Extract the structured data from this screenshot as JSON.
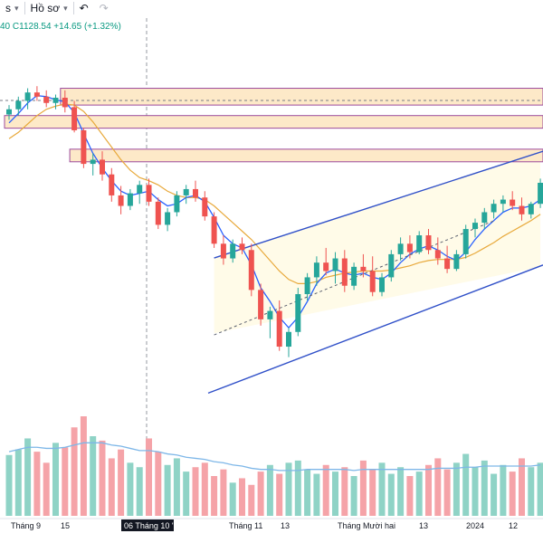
{
  "toolbar": {
    "partial_label": "s",
    "profile_label": "Hồ sơ",
    "undo_icon": "undo-icon",
    "redo_icon": "redo-icon",
    "menu_icon": "chevron-down-icon"
  },
  "ohlc_text": "40  C1128.54  +14.65 (+1.32%)",
  "colors": {
    "up": "#26a69a",
    "down": "#ef5350",
    "vol_up": "#8fd3c6",
    "vol_down": "#f5a3a8",
    "ma_fast": "#2962ff",
    "ma_slow": "#e8a93b",
    "ma_vol": "#7eb7e8",
    "zone_fill": "#fde9c8",
    "zone_border": "#9c4a9c",
    "channel": "#3050c8",
    "channel_fill": "#fffbe8"
  },
  "chart_data": {
    "type": "candlestick",
    "x_labels": [
      "Tháng 9",
      "15",
      "06 Tháng 10 '23",
      "Tháng 11",
      "13",
      "Tháng Mười hai",
      "13",
      "2024",
      "12"
    ],
    "crosshair_label": "06 Tháng 10 '23",
    "price_scale": [
      930,
      1260
    ],
    "candles": [
      [
        1213,
        1222,
        1208,
        1218
      ],
      [
        1218,
        1230,
        1212,
        1226
      ],
      [
        1226,
        1238,
        1218,
        1234
      ],
      [
        1234,
        1240,
        1226,
        1230
      ],
      [
        1230,
        1236,
        1220,
        1224
      ],
      [
        1224,
        1232,
        1218,
        1229
      ],
      [
        1229,
        1236,
        1215,
        1220
      ],
      [
        1220,
        1226,
        1196,
        1198
      ],
      [
        1198,
        1200,
        1162,
        1166
      ],
      [
        1166,
        1176,
        1155,
        1170
      ],
      [
        1170,
        1178,
        1150,
        1156
      ],
      [
        1156,
        1162,
        1130,
        1136
      ],
      [
        1136,
        1145,
        1118,
        1126
      ],
      [
        1126,
        1142,
        1122,
        1138
      ],
      [
        1138,
        1150,
        1128,
        1146
      ],
      [
        1146,
        1152,
        1126,
        1130
      ],
      [
        1130,
        1134,
        1104,
        1108
      ],
      [
        1108,
        1124,
        1102,
        1120
      ],
      [
        1120,
        1140,
        1116,
        1136
      ],
      [
        1136,
        1146,
        1128,
        1142
      ],
      [
        1142,
        1150,
        1130,
        1134
      ],
      [
        1134,
        1140,
        1112,
        1116
      ],
      [
        1116,
        1120,
        1086,
        1090
      ],
      [
        1090,
        1098,
        1070,
        1076
      ],
      [
        1076,
        1094,
        1072,
        1090
      ],
      [
        1090,
        1096,
        1080,
        1084
      ],
      [
        1084,
        1090,
        1040,
        1046
      ],
      [
        1046,
        1052,
        1012,
        1018
      ],
      [
        1018,
        1030,
        1000,
        1026
      ],
      [
        1026,
        1036,
        988,
        992
      ],
      [
        992,
        1010,
        982,
        1006
      ],
      [
        1006,
        1048,
        1002,
        1042
      ],
      [
        1042,
        1062,
        1036,
        1058
      ],
      [
        1058,
        1078,
        1050,
        1072
      ],
      [
        1072,
        1086,
        1060,
        1064
      ],
      [
        1064,
        1082,
        1052,
        1076
      ],
      [
        1076,
        1084,
        1044,
        1050
      ],
      [
        1050,
        1072,
        1046,
        1068
      ],
      [
        1068,
        1080,
        1058,
        1064
      ],
      [
        1064,
        1078,
        1040,
        1044
      ],
      [
        1044,
        1062,
        1040,
        1058
      ],
      [
        1058,
        1084,
        1054,
        1080
      ],
      [
        1080,
        1096,
        1074,
        1090
      ],
      [
        1090,
        1098,
        1076,
        1082
      ],
      [
        1082,
        1102,
        1080,
        1098
      ],
      [
        1098,
        1104,
        1080,
        1084
      ],
      [
        1084,
        1096,
        1070,
        1076
      ],
      [
        1076,
        1088,
        1062,
        1066
      ],
      [
        1066,
        1084,
        1064,
        1080
      ],
      [
        1080,
        1108,
        1076,
        1104
      ],
      [
        1104,
        1114,
        1096,
        1110
      ],
      [
        1110,
        1124,
        1104,
        1120
      ],
      [
        1120,
        1132,
        1114,
        1128
      ],
      [
        1128,
        1136,
        1120,
        1132
      ],
      [
        1132,
        1140,
        1122,
        1126
      ],
      [
        1126,
        1134,
        1112,
        1118
      ],
      [
        1118,
        1130,
        1114,
        1128
      ],
      [
        1128,
        1152,
        1124,
        1148
      ]
    ],
    "volumes": [
      55,
      60,
      70,
      58,
      48,
      66,
      62,
      80,
      90,
      72,
      68,
      52,
      60,
      48,
      44,
      70,
      58,
      46,
      52,
      40,
      44,
      48,
      36,
      42,
      30,
      34,
      28,
      40,
      46,
      38,
      48,
      50,
      42,
      38,
      46,
      40,
      44,
      36,
      50,
      42,
      48,
      38,
      44,
      36,
      40,
      46,
      52,
      42,
      48,
      56,
      44,
      50,
      38,
      46,
      40,
      52,
      44,
      48
    ],
    "zones": [
      [
        1238,
        1222
      ],
      [
        1212,
        1200
      ],
      [
        1180,
        1168
      ]
    ],
    "fast_ma": [
      1205,
      1214,
      1224,
      1231,
      1230,
      1227,
      1225,
      1215,
      1195,
      1176,
      1162,
      1150,
      1140,
      1136,
      1138,
      1140,
      1132,
      1126,
      1128,
      1134,
      1136,
      1130,
      1115,
      1098,
      1090,
      1086,
      1070,
      1048,
      1035,
      1020,
      1010,
      1020,
      1035,
      1052,
      1062,
      1066,
      1062,
      1060,
      1062,
      1058,
      1056,
      1062,
      1072,
      1080,
      1085,
      1088,
      1084,
      1078,
      1074,
      1082,
      1094,
      1104,
      1112,
      1120,
      1124,
      1124,
      1126,
      1132
    ],
    "slow_ma": [
      1190,
      1196,
      1204,
      1212,
      1218,
      1221,
      1223,
      1222,
      1216,
      1206,
      1194,
      1182,
      1170,
      1160,
      1153,
      1150,
      1146,
      1140,
      1136,
      1134,
      1134,
      1132,
      1126,
      1118,
      1110,
      1102,
      1094,
      1084,
      1074,
      1064,
      1056,
      1052,
      1052,
      1054,
      1058,
      1060,
      1062,
      1063,
      1064,
      1064,
      1064,
      1065,
      1067,
      1069,
      1072,
      1074,
      1075,
      1075,
      1075,
      1077,
      1081,
      1086,
      1091,
      1097,
      1102,
      1107,
      1112,
      1118
    ],
    "vol_ma": [
      58,
      60,
      62,
      62,
      61,
      61,
      62,
      64,
      66,
      66,
      66,
      64,
      63,
      61,
      59,
      59,
      58,
      56,
      55,
      53,
      52,
      51,
      49,
      48,
      46,
      45,
      43,
      42,
      42,
      41,
      41,
      41,
      42,
      42,
      42,
      42,
      42,
      41,
      42,
      42,
      42,
      42,
      42,
      42,
      42,
      42,
      43,
      43,
      43,
      44,
      44,
      45,
      45,
      45,
      45,
      45,
      45,
      46
    ],
    "channel_lower": [
      [
        0,
        965
      ],
      [
        57,
        1068
      ]
    ],
    "channel_upper": [
      [
        6,
        1030
      ],
      [
        57,
        1178
      ]
    ]
  }
}
